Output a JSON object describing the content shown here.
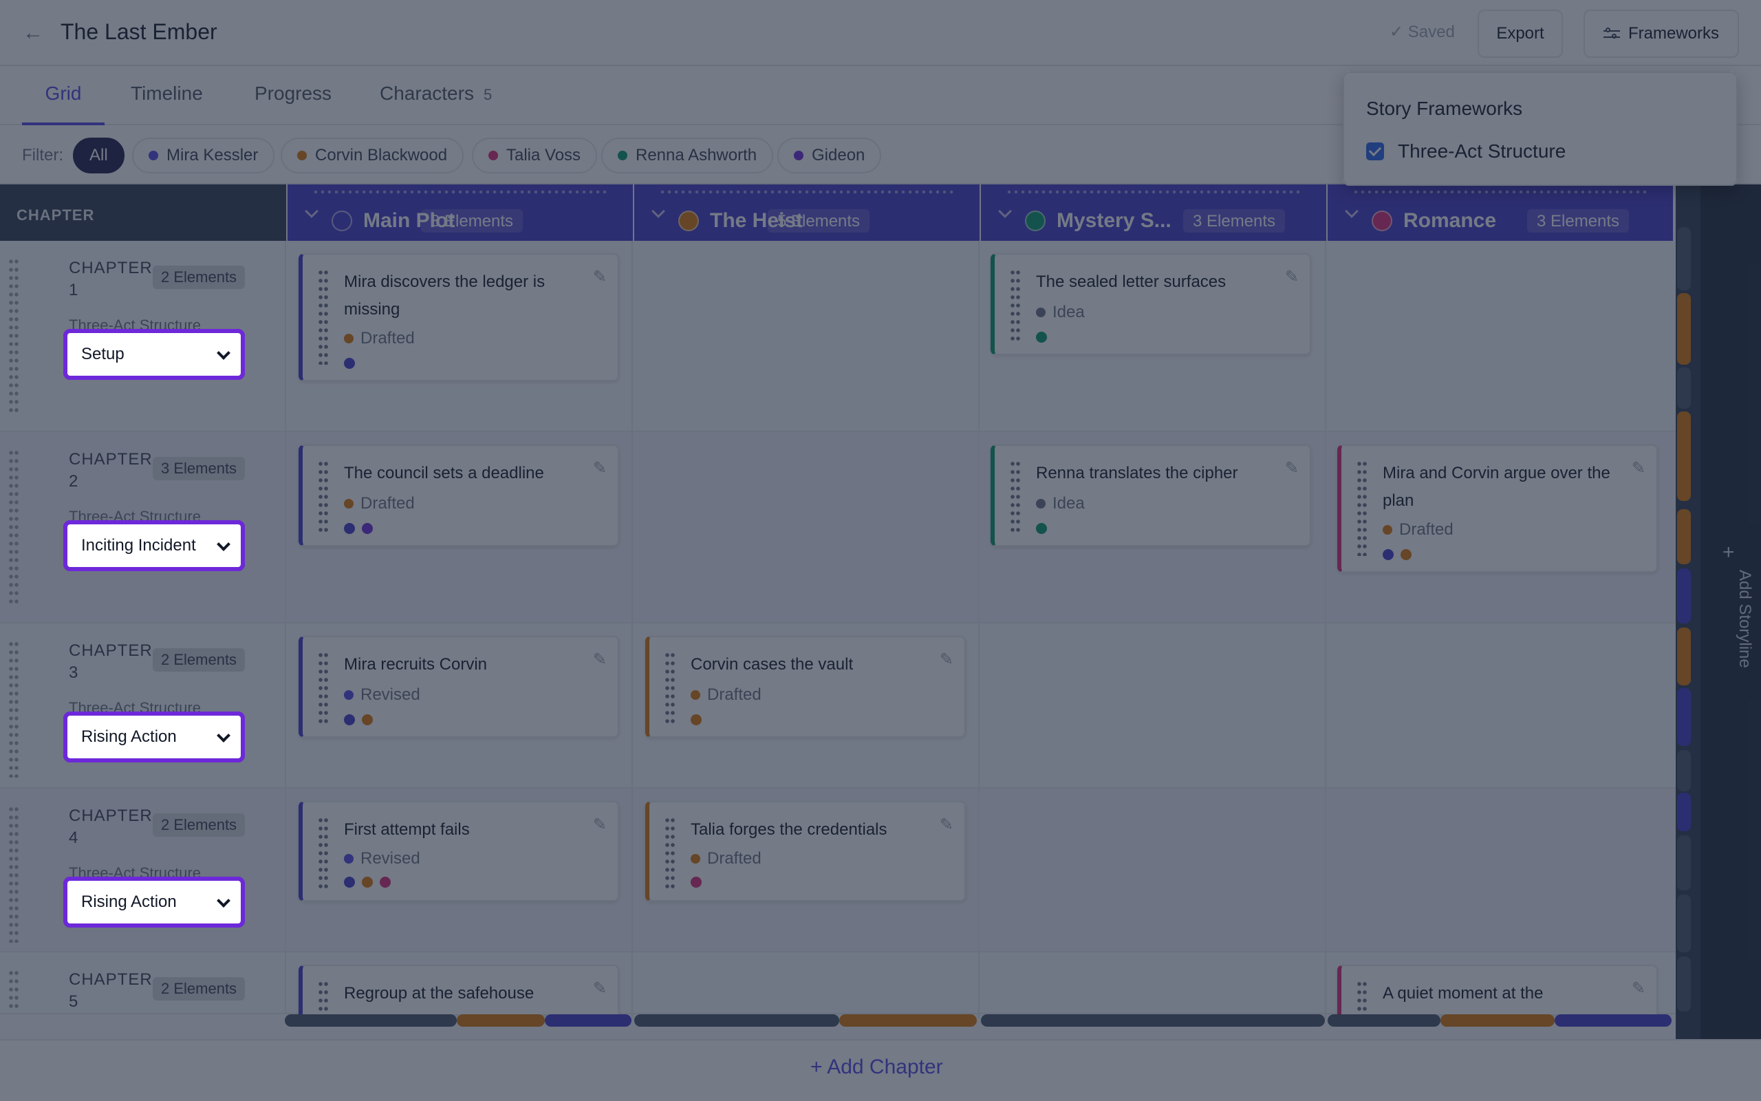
{
  "header": {
    "back_icon": "arrow-left-icon",
    "title": "The Last Ember",
    "saved_label": "Saved",
    "export_label": "Export",
    "frameworks_label": "Frameworks"
  },
  "tabs": [
    {
      "label": "Grid",
      "active": true
    },
    {
      "label": "Timeline",
      "active": false
    },
    {
      "label": "Progress",
      "active": false
    },
    {
      "label": "Characters",
      "count": "5",
      "active": false
    }
  ],
  "filter": {
    "label": "Filter:",
    "chips": [
      {
        "label": "All",
        "active": true
      },
      {
        "label": "Mira Kessler",
        "color": "#4f46e5"
      },
      {
        "label": "Corvin Blackwood",
        "color": "#d97706"
      },
      {
        "label": "Talia Voss",
        "color": "#db2777"
      },
      {
        "label": "Renna Ashworth",
        "color": "#059669"
      },
      {
        "label": "Gideon",
        "color": "#6d28d9"
      }
    ]
  },
  "grid": {
    "chapter_header": "CHAPTER",
    "storylines": [
      {
        "name": "Main Plot",
        "count": "8 Elements",
        "color": "#4338ca"
      },
      {
        "name": "The Heist",
        "count": "5 Elements",
        "color": "#d97706"
      },
      {
        "name": "Mystery S...",
        "count": "3 Elements",
        "color": "#059669"
      },
      {
        "name": "Romance",
        "count": "3 Elements",
        "color": "#db2777"
      }
    ],
    "framework_label": "Three-Act Structure",
    "chapters": [
      {
        "label": "CHAPTER 1",
        "count": "2 Elements",
        "beat": "Setup"
      },
      {
        "label": "CHAPTER 2",
        "count": "3 Elements",
        "beat": "Inciting Incident"
      },
      {
        "label": "CHAPTER 3",
        "count": "2 Elements",
        "beat": "Rising Action"
      },
      {
        "label": "CHAPTER 4",
        "count": "2 Elements",
        "beat": "Rising Action"
      },
      {
        "label": "CHAPTER 5",
        "count": "2 Elements",
        "beat": ""
      }
    ],
    "cards": [
      {
        "title": "Mira discovers the ledger is missing",
        "status": "Drafted",
        "status_color": "#d97706"
      },
      {
        "title": "The sealed letter surfaces",
        "status": "Idea",
        "status_color": "#9ca3af"
      },
      {
        "title": "The council sets a deadline",
        "status": "Drafted",
        "status_color": "#d97706"
      },
      {
        "title": "Renna translates the cipher",
        "status": "Idea",
        "status_color": "#9ca3af"
      },
      {
        "title": "Mira and Corvin argue over the plan",
        "status": "Drafted",
        "status_color": "#d97706"
      },
      {
        "title": "Mira recruits Corvin",
        "status": "Revised",
        "status_color": "#4f46e5"
      },
      {
        "title": "Corvin cases the vault",
        "status": "Drafted",
        "status_color": "#d97706"
      },
      {
        "title": "First attempt fails",
        "status": "Revised",
        "status_color": "#4f46e5"
      },
      {
        "title": "Talia forges the credentials",
        "status": "Drafted",
        "status_color": "#d97706"
      },
      {
        "title": "Regroup at the safehouse",
        "status": "",
        "status_color": ""
      },
      {
        "title": "A quiet moment at the",
        "status": "",
        "status_color": ""
      }
    ],
    "add_storyline_label": "Add Storyline",
    "add_chapter_label": "Add Chapter"
  },
  "frameworks_dropdown": {
    "title": "Story Frameworks",
    "items": [
      {
        "label": "Three-Act Structure",
        "checked": true
      }
    ]
  }
}
